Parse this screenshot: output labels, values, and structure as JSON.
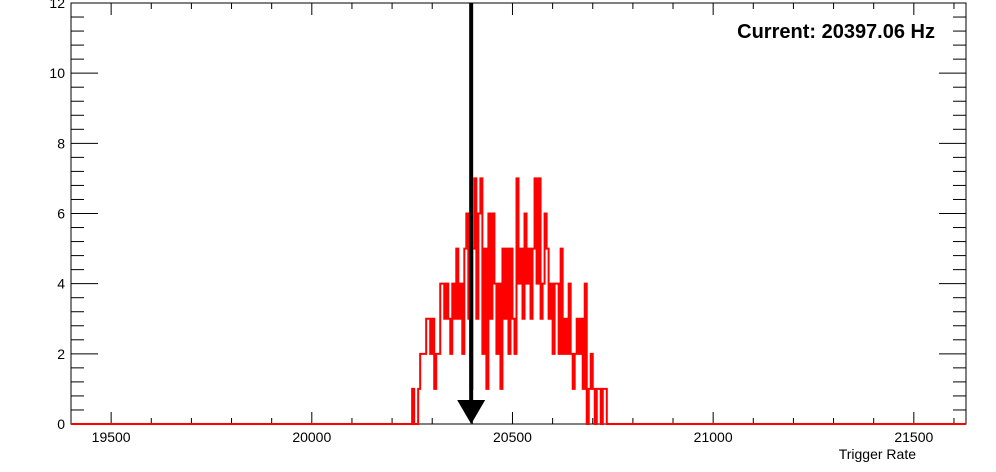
{
  "chart_data": {
    "type": "histogram",
    "title": "",
    "annotation": "Current: 20397.06 Hz",
    "current_value": 20397.06,
    "arrow_top_y": 12,
    "xlabel": "Trigger Rate",
    "ylabel": "",
    "xlim": [
      19400,
      21630
    ],
    "ylim": [
      0,
      12
    ],
    "x_ticks": [
      19500,
      20000,
      20500,
      21000,
      21500
    ],
    "y_ticks": [
      0,
      2,
      4,
      6,
      8,
      10,
      12
    ],
    "series": [
      {
        "color": "#ff0000",
        "bin_width": 5,
        "bins": [
          [
            20250,
            1
          ],
          [
            20255,
            0
          ],
          [
            20260,
            0
          ],
          [
            20265,
            1
          ],
          [
            20270,
            2
          ],
          [
            20275,
            2
          ],
          [
            20280,
            2
          ],
          [
            20285,
            3
          ],
          [
            20290,
            3
          ],
          [
            20295,
            2
          ],
          [
            20300,
            3
          ],
          [
            20305,
            1
          ],
          [
            20310,
            2
          ],
          [
            20315,
            2
          ],
          [
            20320,
            4
          ],
          [
            20325,
            4
          ],
          [
            20330,
            3
          ],
          [
            20335,
            4
          ],
          [
            20340,
            3
          ],
          [
            20345,
            2
          ],
          [
            20350,
            4
          ],
          [
            20355,
            3
          ],
          [
            20360,
            5
          ],
          [
            20365,
            3
          ],
          [
            20370,
            4
          ],
          [
            20375,
            2
          ],
          [
            20380,
            5
          ],
          [
            20385,
            6
          ],
          [
            20390,
            3
          ],
          [
            20395,
            1
          ],
          [
            20400,
            5
          ],
          [
            20405,
            7
          ],
          [
            20410,
            3
          ],
          [
            20415,
            6
          ],
          [
            20420,
            7
          ],
          [
            20425,
            2
          ],
          [
            20430,
            5
          ],
          [
            20435,
            1
          ],
          [
            20440,
            6
          ],
          [
            20445,
            3
          ],
          [
            20450,
            6
          ],
          [
            20455,
            4
          ],
          [
            20460,
            2
          ],
          [
            20465,
            4
          ],
          [
            20470,
            1
          ],
          [
            20475,
            5
          ],
          [
            20480,
            3
          ],
          [
            20485,
            5
          ],
          [
            20490,
            2
          ],
          [
            20495,
            5
          ],
          [
            20500,
            3
          ],
          [
            20505,
            2
          ],
          [
            20510,
            7
          ],
          [
            20515,
            4
          ],
          [
            20520,
            5
          ],
          [
            20525,
            3
          ],
          [
            20530,
            6
          ],
          [
            20535,
            4
          ],
          [
            20540,
            5
          ],
          [
            20545,
            3
          ],
          [
            20550,
            5
          ],
          [
            20555,
            7
          ],
          [
            20560,
            4
          ],
          [
            20565,
            7
          ],
          [
            20570,
            3
          ],
          [
            20575,
            4
          ],
          [
            20580,
            6
          ],
          [
            20585,
            5
          ],
          [
            20590,
            3
          ],
          [
            20595,
            4
          ],
          [
            20600,
            2
          ],
          [
            20605,
            4
          ],
          [
            20610,
            4
          ],
          [
            20615,
            2
          ],
          [
            20620,
            5
          ],
          [
            20625,
            2
          ],
          [
            20630,
            3
          ],
          [
            20635,
            2
          ],
          [
            20640,
            4
          ],
          [
            20645,
            2
          ],
          [
            20650,
            1
          ],
          [
            20655,
            2
          ],
          [
            20660,
            3
          ],
          [
            20665,
            2
          ],
          [
            20670,
            3
          ],
          [
            20675,
            1
          ],
          [
            20680,
            4
          ],
          [
            20685,
            0
          ],
          [
            20690,
            1
          ],
          [
            20695,
            2
          ],
          [
            20700,
            1
          ],
          [
            20705,
            0
          ],
          [
            20710,
            1
          ],
          [
            20715,
            1
          ],
          [
            20720,
            0
          ],
          [
            20725,
            1
          ],
          [
            20730,
            1
          ]
        ]
      }
    ]
  }
}
